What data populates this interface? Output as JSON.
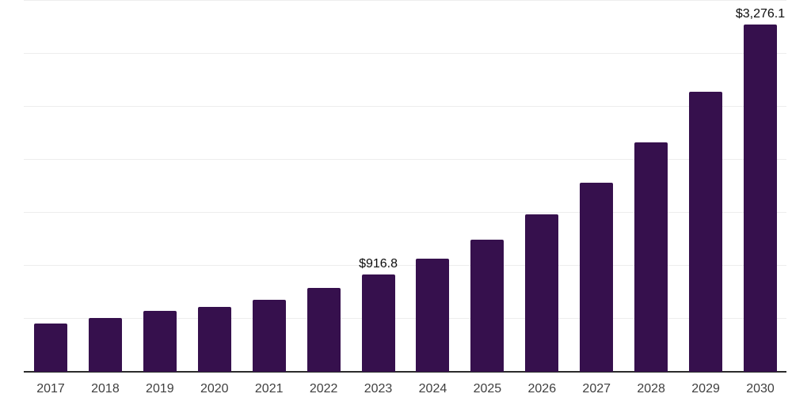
{
  "chart_data": {
    "type": "bar",
    "title": "",
    "xlabel": "",
    "ylabel": "",
    "categories": [
      "2017",
      "2018",
      "2019",
      "2020",
      "2021",
      "2022",
      "2023",
      "2024",
      "2025",
      "2026",
      "2027",
      "2028",
      "2029",
      "2030"
    ],
    "values": [
      455,
      505,
      577,
      610,
      677,
      789,
      916.8,
      1070,
      1244,
      1485,
      1784,
      2159,
      2642,
      3276.1
    ],
    "data_labels": [
      {
        "category": "2023",
        "text": "$916.8"
      },
      {
        "category": "2030",
        "text": "$3,276.1"
      }
    ],
    "ylim": [
      0,
      3500
    ],
    "gridline_interval": 500,
    "grid": "horizontal",
    "y_tick_labels_visible": false,
    "legend_position": "none",
    "colors": {
      "bar": "#36104D",
      "axis_line": "#2b2b2b",
      "gridline": "#ededed",
      "tick_label": "#3f3f3f",
      "data_label": "#0d0d0d",
      "background": "#ffffff"
    }
  }
}
